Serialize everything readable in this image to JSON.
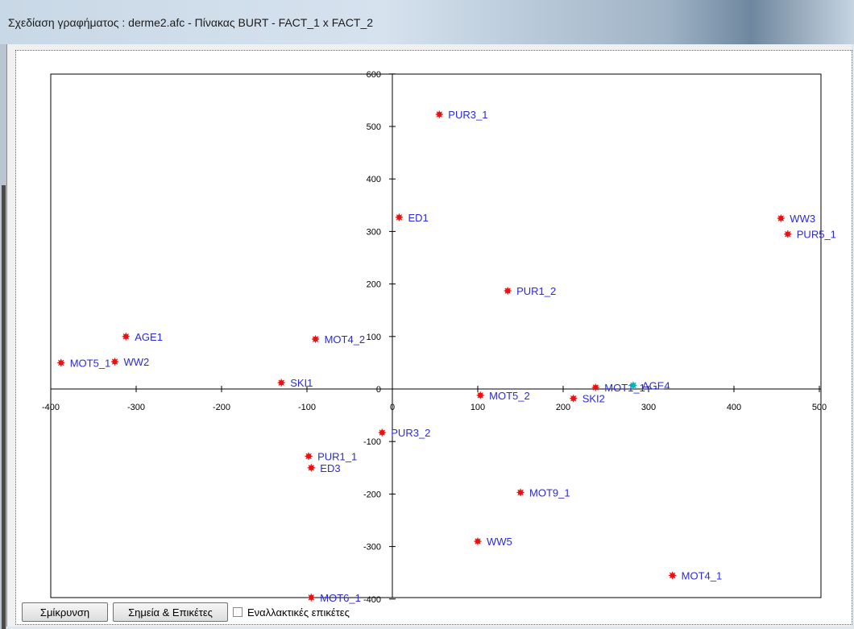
{
  "window": {
    "title": "Σχεδίαση γραφήματος : derme2.afc  -  Πίνακας BURT  -  FACT_1 x FACT_2"
  },
  "buttons": {
    "zoom_out": "Σμίκρυνση",
    "points_labels": "Σημεία & Επικέτες"
  },
  "alt_labels": {
    "label": "Εναλλακτικές επικέτες",
    "checked": false
  },
  "colors": {
    "point": "#ee1111",
    "label": "#2a2ad8",
    "highlight_point": "#00b3b3"
  },
  "chart_data": {
    "type": "scatter",
    "xlim": [
      -400,
      500
    ],
    "ylim": [
      -400,
      600
    ],
    "x_ticks": [
      "-400",
      "-300",
      "-200",
      "-100",
      "0",
      "100",
      "200",
      "300",
      "400",
      "500"
    ],
    "y_ticks": [
      "600",
      "500",
      "400",
      "300",
      "200",
      "100",
      "0",
      "-100",
      "-200",
      "-300",
      "-400"
    ],
    "grid": false,
    "points": [
      {
        "label": "PUR3_1",
        "x": 55,
        "y": 523
      },
      {
        "label": "ED1",
        "x": 8,
        "y": 327
      },
      {
        "label": "WW3",
        "x": 455,
        "y": 325
      },
      {
        "label": "PUR5_1",
        "x": 463,
        "y": 295
      },
      {
        "label": "PUR1_2",
        "x": 135,
        "y": 187
      },
      {
        "label": "AGE1",
        "x": 312,
        "y": 100,
        "neg": true
      },
      {
        "label": "MOT4_2",
        "x": -90,
        "y": 95
      },
      {
        "label": "MOT5_1",
        "x": -388,
        "y": 50
      },
      {
        "label": "WW2",
        "x": -325,
        "y": 52
      },
      {
        "label": "SKI1",
        "x": -130,
        "y": 12
      },
      {
        "label": "MOT1_1",
        "x": 238,
        "y": 3
      },
      {
        "label": "AGE4",
        "x": 282,
        "y": 7,
        "highlight": true
      },
      {
        "label": "MOT5_2",
        "x": 103,
        "y": -12
      },
      {
        "label": "SKI2",
        "x": 212,
        "y": -18
      },
      {
        "label": "PUR3_2",
        "x": -12,
        "y": -83
      },
      {
        "label": "PUR1_1",
        "x": -98,
        "y": -128
      },
      {
        "label": "ED3",
        "x": -95,
        "y": -150
      },
      {
        "label": "MOT9_1",
        "x": 150,
        "y": -197
      },
      {
        "label": "WW5",
        "x": 100,
        "y": -290
      },
      {
        "label": "MOT4_1",
        "x": 328,
        "y": -355
      },
      {
        "label": "MOT6_1",
        "x": -95,
        "y": -397
      }
    ]
  }
}
